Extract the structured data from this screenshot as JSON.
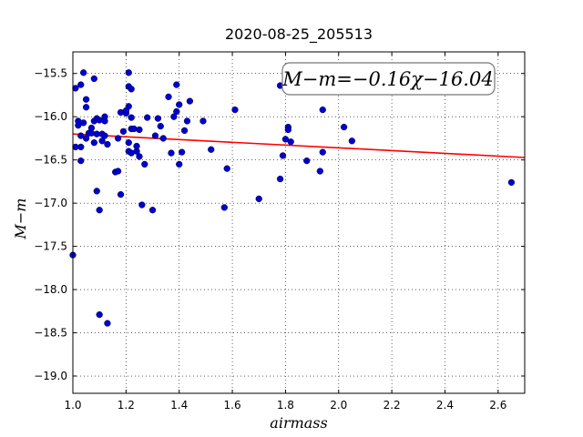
{
  "chart_data": {
    "type": "scatter",
    "title": "2020-08-25_205513",
    "xlabel": "airmass",
    "ylabel": "M−m",
    "xlim": [
      1.0,
      2.7
    ],
    "ylim": [
      -19.2,
      -15.25
    ],
    "y_inverted": true,
    "grid": true,
    "x_ticks": [
      1.0,
      1.2,
      1.4,
      1.6,
      1.8,
      2.0,
      2.2,
      2.4,
      2.6
    ],
    "x_tick_labels": [
      "1.0",
      "1.2",
      "1.4",
      "1.6",
      "1.8",
      "2.0",
      "2.2",
      "2.4",
      "2.6"
    ],
    "y_ticks": [
      -15.5,
      -16.0,
      -16.5,
      -17.0,
      -17.5,
      -18.0,
      -18.5,
      -19.0
    ],
    "y_tick_labels": [
      "−15.5",
      "−16.0",
      "−16.5",
      "−17.0",
      "−17.5",
      "−18.0",
      "−18.5",
      "−19.0"
    ],
    "annotation": "M−m=−0.16χ−16.04",
    "fit": {
      "slope": -0.16,
      "intercept": -16.04,
      "color": "#ff0000"
    },
    "marker_color": "#0000cc",
    "points": [
      [
        1.0,
        -17.6
      ],
      [
        1.01,
        -15.67
      ],
      [
        1.01,
        -16.35
      ],
      [
        1.02,
        -16.1
      ],
      [
        1.02,
        -16.05
      ],
      [
        1.03,
        -15.63
      ],
      [
        1.03,
        -16.22
      ],
      [
        1.03,
        -16.51
      ],
      [
        1.03,
        -16.35
      ],
      [
        1.04,
        -15.49
      ],
      [
        1.04,
        -16.07
      ],
      [
        1.05,
        -15.8
      ],
      [
        1.05,
        -15.89
      ],
      [
        1.05,
        -16.25
      ],
      [
        1.06,
        -16.19
      ],
      [
        1.07,
        -16.13
      ],
      [
        1.07,
        -16.19
      ],
      [
        1.08,
        -15.56
      ],
      [
        1.08,
        -16.3
      ],
      [
        1.08,
        -16.05
      ],
      [
        1.09,
        -16.2
      ],
      [
        1.09,
        -16.02
      ],
      [
        1.09,
        -16.86
      ],
      [
        1.1,
        -17.08
      ],
      [
        1.1,
        -16.04
      ],
      [
        1.1,
        -18.29
      ],
      [
        1.11,
        -16.2
      ],
      [
        1.11,
        -16.28
      ],
      [
        1.12,
        -16.22
      ],
      [
        1.12,
        -16.0
      ],
      [
        1.12,
        -16.05
      ],
      [
        1.13,
        -16.32
      ],
      [
        1.13,
        -18.39
      ],
      [
        1.16,
        -16.64
      ],
      [
        1.17,
        -16.63
      ],
      [
        1.17,
        -16.25
      ],
      [
        1.18,
        -15.95
      ],
      [
        1.18,
        -16.9
      ],
      [
        1.19,
        -16.17
      ],
      [
        1.2,
        -15.96
      ],
      [
        1.2,
        -15.93
      ],
      [
        1.21,
        -15.49
      ],
      [
        1.21,
        -16.3
      ],
      [
        1.21,
        -15.65
      ],
      [
        1.21,
        -15.88
      ],
      [
        1.21,
        -16.4
      ],
      [
        1.22,
        -15.68
      ],
      [
        1.22,
        -16.01
      ],
      [
        1.22,
        -16.14
      ],
      [
        1.22,
        -16.42
      ],
      [
        1.23,
        -16.14
      ],
      [
        1.24,
        -16.4
      ],
      [
        1.24,
        -16.34
      ],
      [
        1.25,
        -16.46
      ],
      [
        1.25,
        -16.15
      ],
      [
        1.26,
        -17.02
      ],
      [
        1.27,
        -16.55
      ],
      [
        1.28,
        -16.01
      ],
      [
        1.3,
        -17.08
      ],
      [
        1.31,
        -16.22
      ],
      [
        1.32,
        -16.02
      ],
      [
        1.33,
        -16.11
      ],
      [
        1.34,
        -16.25
      ],
      [
        1.36,
        -15.77
      ],
      [
        1.37,
        -16.42
      ],
      [
        1.38,
        -16.0
      ],
      [
        1.39,
        -15.63
      ],
      [
        1.39,
        -15.94
      ],
      [
        1.4,
        -15.86
      ],
      [
        1.4,
        -16.55
      ],
      [
        1.41,
        -16.41
      ],
      [
        1.42,
        -16.16
      ],
      [
        1.43,
        -16.05
      ],
      [
        1.44,
        -15.82
      ],
      [
        1.49,
        -16.05
      ],
      [
        1.52,
        -16.38
      ],
      [
        1.57,
        -17.05
      ],
      [
        1.58,
        -16.6
      ],
      [
        1.61,
        -15.92
      ],
      [
        1.7,
        -16.95
      ],
      [
        1.78,
        -16.72
      ],
      [
        1.78,
        -15.64
      ],
      [
        1.79,
        -16.45
      ],
      [
        1.8,
        -16.26
      ],
      [
        1.81,
        -16.12
      ],
      [
        1.81,
        -16.15
      ],
      [
        1.82,
        -16.29
      ],
      [
        1.88,
        -16.51
      ],
      [
        1.93,
        -16.63
      ],
      [
        1.94,
        -16.41
      ],
      [
        1.94,
        -15.92
      ],
      [
        2.02,
        -16.12
      ],
      [
        2.05,
        -16.28
      ],
      [
        2.65,
        -16.76
      ]
    ]
  }
}
